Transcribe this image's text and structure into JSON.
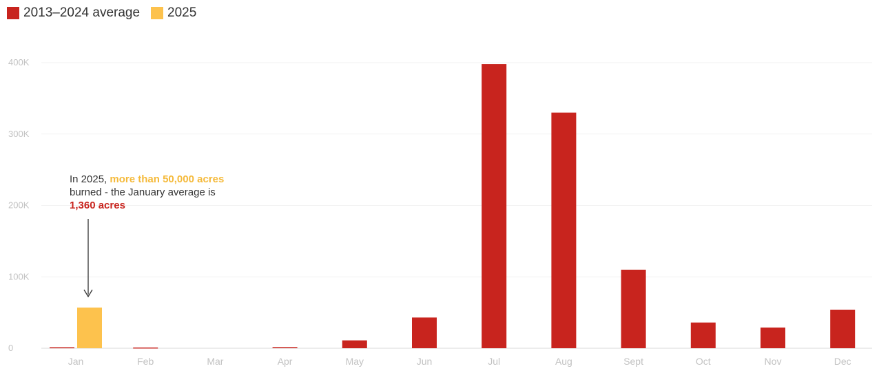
{
  "chart_data": {
    "type": "bar",
    "categories": [
      "Jan",
      "Feb",
      "Mar",
      "Apr",
      "May",
      "Jun",
      "Jul",
      "Aug",
      "Sept",
      "Oct",
      "Nov",
      "Dec"
    ],
    "series": [
      {
        "name": "2013–2024 average",
        "color": "#C8241E",
        "values": [
          1360,
          1000,
          0,
          1500,
          11000,
          43000,
          398000,
          330000,
          110000,
          36000,
          29000,
          54000
        ]
      },
      {
        "name": "2025",
        "color": "#FDC24D",
        "values": [
          57000,
          null,
          null,
          null,
          null,
          null,
          null,
          null,
          null,
          null,
          null,
          null
        ]
      }
    ],
    "ylim": [
      0,
      400000
    ],
    "yticks": [
      0,
      100000,
      200000,
      300000,
      400000
    ],
    "ytick_labels": [
      "0",
      "100K",
      "200K",
      "300K",
      "400K"
    ],
    "legend_position": "top-left",
    "grid": true,
    "annotation": {
      "part1": "In 2025, ",
      "part2": "more than 50,000 acres",
      "part3": " burned - the January average is ",
      "part4": "1,360 acres"
    }
  }
}
